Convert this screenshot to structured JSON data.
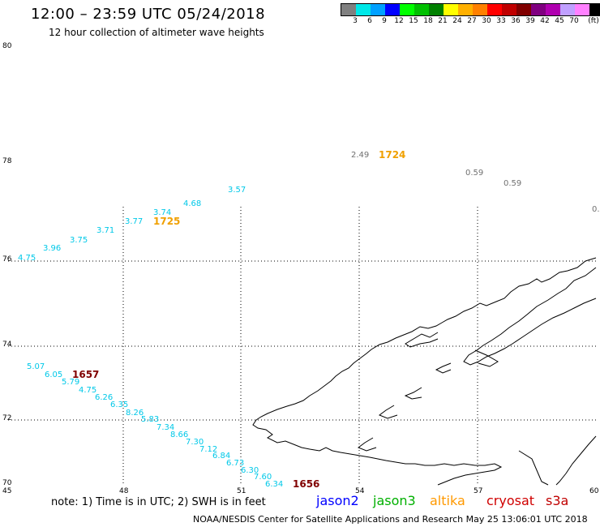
{
  "header": {
    "title": "12:00 – 23:59 UTC 05/24/2018",
    "subtitle": "12 hour collection of altimeter wave heights"
  },
  "legend": {
    "colors": [
      "#808080",
      "#00e8e8",
      "#00a0ff",
      "#0000ff",
      "#00ff00",
      "#00c000",
      "#008000",
      "#ffff00",
      "#ffb000",
      "#ff8000",
      "#ff0000",
      "#c00000",
      "#800000",
      "#800080",
      "#b000b0",
      "#c0a0ff",
      "#ff80ff",
      "#000000"
    ],
    "labels": [
      "3",
      "6",
      "9",
      "12",
      "15",
      "18",
      "21",
      "24",
      "27",
      "30",
      "33",
      "36",
      "39",
      "42",
      "45",
      "70",
      "(ft)"
    ]
  },
  "axes": {
    "y_labels": [
      "80",
      "78",
      "76",
      "74",
      "72",
      "70"
    ],
    "x_labels": [
      "45",
      "48",
      "51",
      "54",
      "57",
      "60"
    ]
  },
  "wave_heights": [
    {
      "text": "2.49",
      "color": "#707070"
    },
    {
      "text": "0.59",
      "color": "#707070"
    },
    {
      "text": "0.59",
      "color": "#707070"
    },
    {
      "text": "0.",
      "color": "#707070"
    },
    {
      "text": "3.57",
      "color": "#00c8e8"
    },
    {
      "text": "4.68",
      "color": "#00c8e8"
    },
    {
      "text": "3.74",
      "color": "#00c8e8"
    },
    {
      "text": "3.77",
      "color": "#00c8e8"
    },
    {
      "text": "3.71",
      "color": "#00c8e8"
    },
    {
      "text": "3.75",
      "color": "#00c8e8"
    },
    {
      "text": "3.96",
      "color": "#00c8e8"
    },
    {
      "text": "4.75",
      "color": "#00c8e8"
    },
    {
      "text": "5.07",
      "color": "#00c8e8"
    },
    {
      "text": "6.05",
      "color": "#00c8e8"
    },
    {
      "text": "5.79",
      "color": "#00c8e8"
    },
    {
      "text": "4.75",
      "color": "#00c8e8"
    },
    {
      "text": "6.26",
      "color": "#00c8e8"
    },
    {
      "text": "6.35",
      "color": "#00c8e8"
    },
    {
      "text": "8.26",
      "color": "#00c8e8"
    },
    {
      "text": "5.83",
      "color": "#00c8e8"
    },
    {
      "text": "7.34",
      "color": "#00c8e8"
    },
    {
      "text": "8.66",
      "color": "#00c8e8"
    },
    {
      "text": "7.30",
      "color": "#00c8e8"
    },
    {
      "text": "7.12",
      "color": "#00c8e8"
    },
    {
      "text": "6.84",
      "color": "#00c8e8"
    },
    {
      "text": "6.73",
      "color": "#00c8e8"
    },
    {
      "text": "6.30",
      "color": "#00c8e8"
    },
    {
      "text": "7.60",
      "color": "#00c8e8"
    },
    {
      "text": "6.34",
      "color": "#00c8e8"
    }
  ],
  "time_labels": [
    {
      "text": "1724",
      "color": "#f0a000"
    },
    {
      "text": "1725",
      "color": "#f0a000"
    },
    {
      "text": "1657",
      "color": "#800000"
    },
    {
      "text": "1656",
      "color": "#800000"
    }
  ],
  "footer": {
    "note": "note:  1) Time is in UTC;  2) SWH is in feet",
    "satellites": [
      {
        "name": "jason2",
        "color": "#0000ff"
      },
      {
        "name": "jason3",
        "color": "#00b000"
      },
      {
        "name": "altika",
        "color": "#ff9900"
      },
      {
        "name": "cryosat",
        "color": "#d00000"
      },
      {
        "name": "s3a",
        "color": "#c00000"
      }
    ],
    "credit": "NOAA/NESDIS Center for Satellite Applications and Research     May 25 13:06:01 UTC 2018"
  }
}
